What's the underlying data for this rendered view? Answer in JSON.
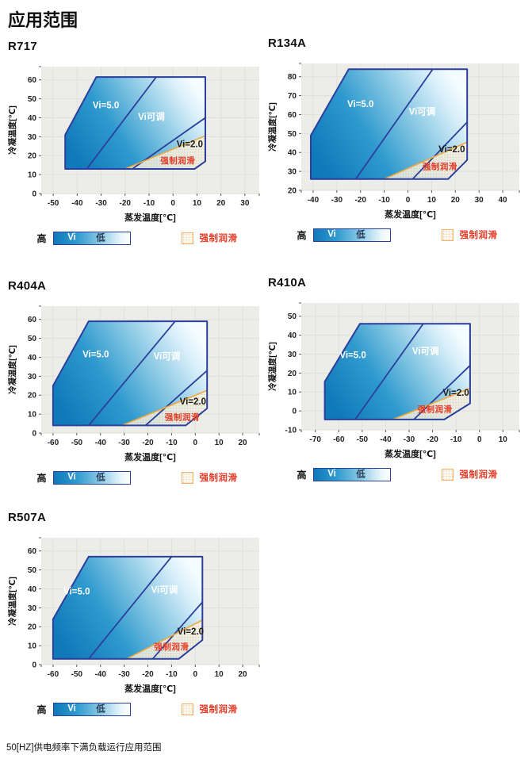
{
  "page": {
    "title": "应用范围",
    "footer": "50[HZ]供电频率下满负载运行应用范围"
  },
  "shared": {
    "xlabel": "蒸发温度[℃]",
    "ylabel": "冷凝温度[℃]",
    "legend": {
      "high": "高",
      "vi": "Vi",
      "low": "低",
      "forced": "强制润滑"
    },
    "region_labels": {
      "vi5": "Vi=5.0",
      "vi_adj": "Vi可调",
      "vi2": "Vi=2.0",
      "forced": "强制润滑"
    },
    "colors": {
      "plot_bg": "#ecede8",
      "grid": "#dfe1d9",
      "outline_blue": "#2b3f9c",
      "fill_blue_dark": "#1079ba",
      "fill_blue_mid": "#2f9ace",
      "fill_blue_light": "#8ecbe5",
      "fill_blue_end": "#f4fcff",
      "orange_line": "#f2a93b",
      "lube_cream": "#fbf4e3",
      "lube_dot": "#e9b97f",
      "red_label": "#e43c28",
      "tick": "#555555",
      "text": "#1a1a1a"
    }
  },
  "chart_data": [
    {
      "type": "area",
      "name": "R717",
      "xlabel": "蒸发温度[℃]",
      "ylabel": "冷凝温度[℃]",
      "xlim": [
        -55,
        36
      ],
      "ylim": [
        0,
        67
      ],
      "xticks": [
        -50,
        -40,
        -30,
        -20,
        -10,
        0,
        10,
        20,
        30
      ],
      "yticks": [
        0,
        10,
        20,
        30,
        40,
        50,
        60
      ],
      "polygon": [
        [
          -45,
          13
        ],
        [
          -45,
          31
        ],
        [
          -32,
          61.5
        ],
        [
          13.5,
          61.5
        ],
        [
          13.5,
          17
        ],
        [
          9,
          13
        ]
      ],
      "vi5_line": [
        [
          -36,
          13
        ],
        [
          -7,
          61.5
        ]
      ],
      "vi2_line": [
        [
          -17,
          13
        ],
        [
          13.5,
          40
        ]
      ],
      "lube_line": [
        [
          -20,
          13
        ],
        [
          13.5,
          30.5
        ]
      ],
      "lube_region": [
        [
          -20,
          13
        ],
        [
          13.5,
          30.5
        ],
        [
          13.5,
          17
        ],
        [
          9,
          13
        ]
      ],
      "labels": {
        "vi5": [
          -28,
          45
        ],
        "vi_adj": [
          -9,
          39
        ],
        "vi2": [
          7,
          24.5
        ],
        "forced": [
          2,
          16
        ]
      }
    },
    {
      "type": "area",
      "name": "R134A",
      "xlabel": "蒸发温度[℃]",
      "ylabel": "冷凝温度[℃]",
      "xlim": [
        -45,
        47
      ],
      "ylim": [
        20,
        87
      ],
      "xticks": [
        -40,
        -30,
        -20,
        -10,
        0,
        10,
        20,
        30,
        40
      ],
      "yticks": [
        20,
        30,
        40,
        50,
        60,
        70,
        80
      ],
      "polygon": [
        [
          -41,
          26
        ],
        [
          -41,
          49
        ],
        [
          -25,
          84
        ],
        [
          25,
          84
        ],
        [
          25,
          36
        ],
        [
          17,
          26
        ]
      ],
      "vi5_line": [
        [
          -22,
          26
        ],
        [
          10.5,
          84
        ]
      ],
      "vi2_line": [
        [
          2,
          26
        ],
        [
          25,
          56
        ]
      ],
      "lube_line": [
        [
          -10,
          26
        ],
        [
          25,
          45.5
        ]
      ],
      "lube_region": [
        [
          -10,
          26
        ],
        [
          25,
          45.5
        ],
        [
          25,
          36
        ],
        [
          17,
          26
        ]
      ],
      "labels": {
        "vi5": [
          -20,
          64
        ],
        "vi_adj": [
          6,
          60
        ],
        "vi2": [
          18.5,
          40
        ],
        "forced": [
          13.5,
          31
        ]
      }
    },
    {
      "type": "area",
      "name": "R404A",
      "xlabel": "蒸发温度[℃]",
      "ylabel": "冷凝温度[℃]",
      "xlim": [
        -65,
        27
      ],
      "ylim": [
        0,
        67
      ],
      "xticks": [
        -60,
        -50,
        -40,
        -30,
        -20,
        -10,
        0,
        10,
        20
      ],
      "yticks": [
        0,
        10,
        20,
        30,
        40,
        50,
        60
      ],
      "polygon": [
        [
          -60,
          4
        ],
        [
          -60,
          25
        ],
        [
          -45,
          59
        ],
        [
          5,
          59
        ],
        [
          5,
          13
        ],
        [
          -4,
          4
        ]
      ],
      "vi5_line": [
        [
          -45,
          4
        ],
        [
          -8.5,
          59
        ]
      ],
      "vi2_line": [
        [
          -21,
          4
        ],
        [
          5,
          33
        ]
      ],
      "lube_line": [
        [
          -31,
          4
        ],
        [
          5,
          22.5
        ]
      ],
      "lube_region": [
        [
          -31,
          4
        ],
        [
          5,
          22.5
        ],
        [
          5,
          13
        ],
        [
          -4,
          4
        ]
      ],
      "labels": {
        "vi5": [
          -42,
          40
        ],
        "vi_adj": [
          -12,
          39
        ],
        "vi2": [
          -1,
          15
        ],
        "forced": [
          -5.5,
          7
        ]
      }
    },
    {
      "type": "area",
      "name": "R410A",
      "xlabel": "蒸发温度[℃]",
      "ylabel": "冷凝温度[℃]",
      "xlim": [
        -76,
        17
      ],
      "ylim": [
        -10,
        57
      ],
      "xticks": [
        -70,
        -60,
        -50,
        -40,
        -30,
        -20,
        -10,
        0,
        10
      ],
      "yticks": [
        -10,
        0,
        10,
        20,
        30,
        40,
        50
      ],
      "polygon": [
        [
          -66,
          -4.5
        ],
        [
          -66,
          15.5
        ],
        [
          -51,
          46
        ],
        [
          -4,
          46
        ],
        [
          -4,
          4
        ],
        [
          -15,
          -4.5
        ]
      ],
      "vi5_line": [
        [
          -53,
          -4.5
        ],
        [
          -24,
          46
        ]
      ],
      "vi2_line": [
        [
          -28,
          -4.5
        ],
        [
          -4,
          24
        ]
      ],
      "lube_line": [
        [
          -37,
          -4.5
        ],
        [
          -4,
          12
        ]
      ],
      "lube_region": [
        [
          -37,
          -4.5
        ],
        [
          -4,
          12
        ],
        [
          -4,
          4
        ],
        [
          -15,
          -4.5
        ]
      ],
      "labels": {
        "vi5": [
          -54,
          28
        ],
        "vi_adj": [
          -23,
          30
        ],
        "vi2": [
          -10,
          8
        ],
        "forced": [
          -19,
          -0.5
        ]
      }
    },
    {
      "type": "area",
      "name": "R507A",
      "xlabel": "蒸发温度[℃]",
      "ylabel": "冷凝温度[℃]",
      "xlim": [
        -65,
        27
      ],
      "ylim": [
        0,
        67
      ],
      "xticks": [
        -60,
        -50,
        -40,
        -30,
        -20,
        -10,
        0,
        10,
        20
      ],
      "yticks": [
        0,
        10,
        20,
        30,
        40,
        50,
        60
      ],
      "polygon": [
        [
          -60,
          3
        ],
        [
          -60,
          24
        ],
        [
          -45,
          57
        ],
        [
          3,
          57
        ],
        [
          3,
          13
        ],
        [
          -7,
          3
        ]
      ],
      "vi5_line": [
        [
          -45,
          3
        ],
        [
          -10,
          57
        ]
      ],
      "vi2_line": [
        [
          -18,
          3
        ],
        [
          3,
          33
        ]
      ],
      "lube_line": [
        [
          -29,
          3
        ],
        [
          3,
          23.5
        ]
      ],
      "lube_region": [
        [
          -29,
          3
        ],
        [
          3,
          23.5
        ],
        [
          3,
          13
        ],
        [
          -7,
          3
        ]
      ],
      "labels": {
        "vi5": [
          -50,
          37
        ],
        "vi_adj": [
          -13,
          38
        ],
        "vi2": [
          -2,
          16
        ],
        "forced": [
          -10,
          8
        ]
      }
    }
  ]
}
